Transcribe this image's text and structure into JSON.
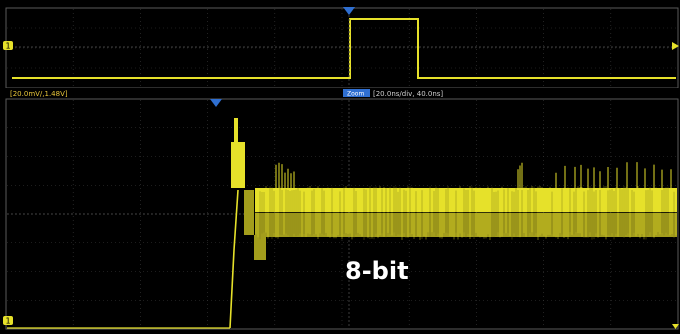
{
  "colors": {
    "background": "#000000",
    "trace": "#e6e12a",
    "trace_dim": "#a39d1c",
    "grid": "#3a3a3a",
    "border": "#5a5a5a",
    "marker": "#2f6fd1",
    "info_text": "#e8c63a",
    "tag_bg": "#2f6fd1",
    "caption": "#ffffff"
  },
  "overview": {
    "channel_marker": "1"
  },
  "zoom_window": {
    "channel_scale_label": "[20.0mV/,1.48V]",
    "zoom_tag": "Zoom",
    "timebase_label": "[20.0ns/div, 40.0ns]",
    "channel_marker": "1"
  },
  "caption": {
    "text": "8-bit"
  },
  "icons": {
    "trigger_marker": "triangle-down-icon",
    "channel_marker": "channel-level-icon",
    "edge_arrow": "triangle-right-icon"
  },
  "trace_summary": {
    "pulse_level_fraction": 0.85,
    "step_settled_level_fraction": 0.45,
    "noise_band": "yellow quantization band"
  }
}
